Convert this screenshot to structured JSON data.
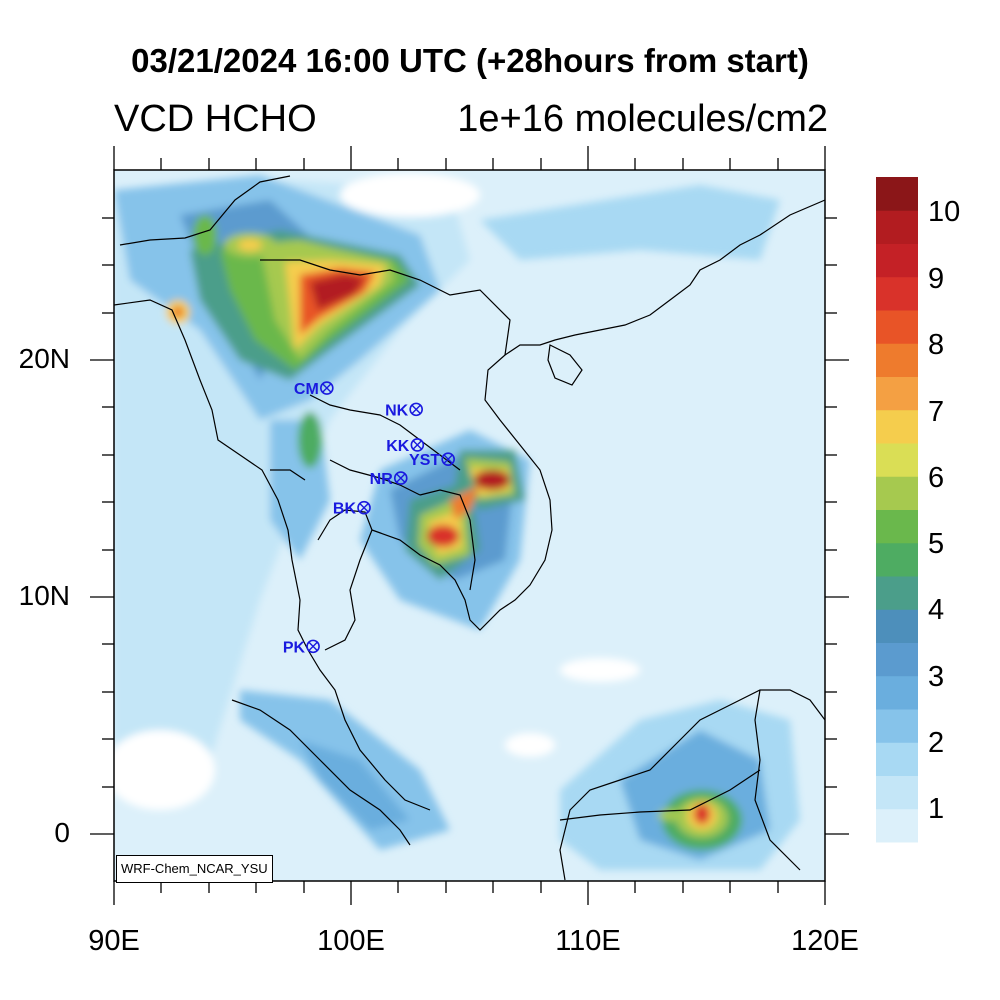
{
  "title": "03/21/2024 16:00 UTC (+28hours from start)",
  "variable": "VCD HCHO",
  "units": "1e+16 molecules/cm2",
  "credit": "WRF-Chem_NCAR_YSU",
  "axes": {
    "x_labels": [
      "90E",
      "100E",
      "110E",
      "120E"
    ],
    "y_labels": [
      "20N",
      "10N",
      "0"
    ],
    "lon_range": [
      90,
      120
    ],
    "lat_range": [
      -2,
      28
    ]
  },
  "colorbar": {
    "labels": [
      "1",
      "2",
      "3",
      "4",
      "5",
      "6",
      "7",
      "8",
      "9",
      "10"
    ],
    "colors": [
      "#dcf0fa",
      "#c4e6f7",
      "#a8d9f3",
      "#86c3ea",
      "#6aaede",
      "#5b9bcf",
      "#4d8fbb",
      "#4b9e8a",
      "#4eac62",
      "#6ab84c",
      "#a6c94f",
      "#dade55",
      "#f5cd4d",
      "#f4a043",
      "#ee7b2d",
      "#e85427",
      "#d9322a",
      "#c42126",
      "#b21c20",
      "#8b1618"
    ]
  },
  "sites": [
    {
      "name": "CM",
      "lon": 98.98,
      "lat": 18.8
    },
    {
      "name": "NK",
      "lon": 102.75,
      "lat": 17.9
    },
    {
      "name": "KK",
      "lon": 102.8,
      "lat": 16.4
    },
    {
      "name": "YST",
      "lon": 104.1,
      "lat": 15.8
    },
    {
      "name": "NR",
      "lon": 102.1,
      "lat": 15.0
    },
    {
      "name": "BK",
      "lon": 100.55,
      "lat": 13.75
    },
    {
      "name": "PK",
      "lon": 98.4,
      "lat": 7.9
    }
  ],
  "chart_data": {
    "type": "heatmap",
    "title": "03/21/2024 16:00 UTC (+28hours from start)",
    "variable": "VCD HCHO",
    "units": "1e+16 molecules/cm2",
    "x_range": [
      90,
      120
    ],
    "y_range": [
      -2,
      28
    ],
    "color_range": [
      0.5,
      10.5
    ],
    "hotspots": [
      {
        "lon": 100.5,
        "lat": 22.5,
        "max": 10
      },
      {
        "lon": 98.5,
        "lat": 21.5,
        "max": 8
      },
      {
        "lon": 96.5,
        "lat": 24.5,
        "max": 7
      },
      {
        "lon": 92.8,
        "lat": 22.0,
        "max": 8
      },
      {
        "lon": 105.8,
        "lat": 15.0,
        "max": 10
      },
      {
        "lon": 104.0,
        "lat": 12.5,
        "max": 10
      },
      {
        "lon": 114.8,
        "lat": 0.8,
        "max": 9
      },
      {
        "lon": 98.0,
        "lat": 15.0,
        "max": 5
      },
      {
        "lon": 101.5,
        "lat": 2.0,
        "max": 4
      }
    ]
  }
}
